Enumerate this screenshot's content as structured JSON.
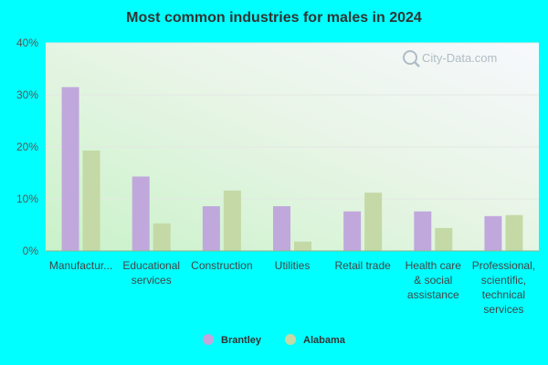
{
  "chart_data": {
    "type": "bar",
    "title": "Most common industries for males in 2024",
    "categories": [
      [
        "Manufactur..."
      ],
      [
        "Educational",
        "services"
      ],
      [
        "Construction"
      ],
      [
        "Utilities"
      ],
      [
        "Retail trade"
      ],
      [
        "Health care",
        "& social",
        "assistance"
      ],
      [
        "Professional,",
        "scientific,",
        "technical",
        "services"
      ]
    ],
    "series": [
      {
        "name": "Brantley",
        "color": "#c0a8dc",
        "values": [
          31.5,
          14.3,
          8.6,
          8.6,
          7.6,
          7.6,
          6.7
        ]
      },
      {
        "name": "Alabama",
        "color": "#c4d9a6",
        "values": [
          19.3,
          5.3,
          11.6,
          1.8,
          11.2,
          4.4,
          6.9
        ]
      }
    ],
    "ylim": [
      0,
      40
    ],
    "yticks": [
      "0%",
      "10%",
      "20%",
      "30%",
      "40%"
    ],
    "grid": true,
    "legend_position": "bottom-center",
    "watermark": "City-Data.com"
  }
}
